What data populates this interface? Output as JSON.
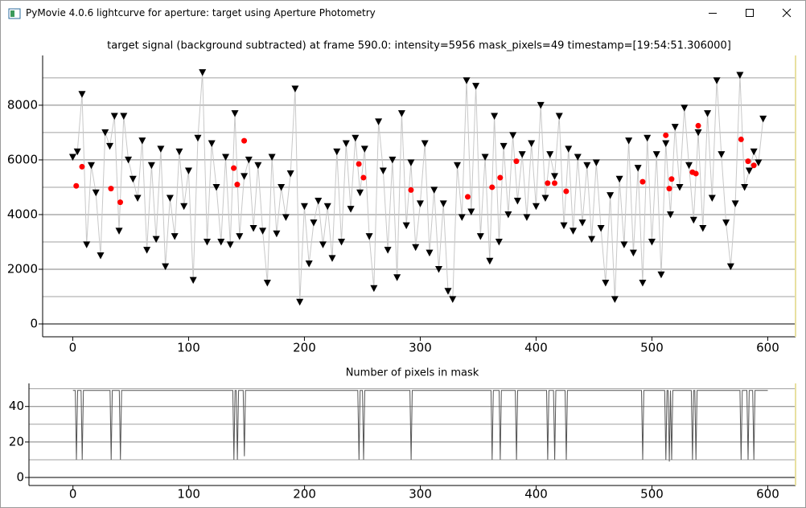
{
  "window": {
    "title": "PyMovie 4.0.6 lightcurve for aperture: target using Aperture Photometry"
  },
  "chart_data": [
    {
      "type": "scatter",
      "title": "target signal (background subtracted) at frame 590.0: intensity=5956 mask_pixels=49 timestamp=[19:54:51.306000]",
      "xlim": [
        -26,
        624
      ],
      "xticks": [
        0,
        100,
        200,
        300,
        400,
        500,
        600
      ],
      "ylim": [
        -470,
        9820
      ],
      "yticks": [
        0,
        2000,
        4000,
        6000,
        8000
      ],
      "yminor": [
        1000,
        3000,
        5000,
        7000,
        9000
      ],
      "grid": true,
      "series": [
        {
          "color": "#000000",
          "marker": "triangle-down",
          "line_color": "#c8c8c8",
          "x": [
            0,
            4,
            8,
            12,
            16,
            20,
            24,
            28,
            32,
            36,
            40,
            44,
            48,
            52,
            56,
            60,
            64,
            68,
            72,
            76,
            80,
            84,
            88,
            92,
            96,
            100,
            104,
            108,
            112,
            116,
            120,
            124,
            128,
            132,
            136,
            140,
            144,
            148,
            152,
            156,
            160,
            164,
            168,
            172,
            176,
            180,
            184,
            188,
            192,
            196,
            200,
            204,
            208,
            212,
            216,
            220,
            224,
            228,
            232,
            236,
            240,
            244,
            248,
            252,
            256,
            260,
            264,
            268,
            272,
            276,
            280,
            284,
            288,
            292,
            296,
            300,
            304,
            308,
            312,
            316,
            320,
            324,
            328,
            332,
            336,
            340,
            344,
            348,
            352,
            356,
            360,
            364,
            368,
            372,
            376,
            380,
            384,
            388,
            392,
            396,
            400,
            404,
            408,
            412,
            416,
            420,
            424,
            428,
            432,
            436,
            440,
            444,
            448,
            452,
            456,
            460,
            464,
            468,
            472,
            476,
            480,
            484,
            488,
            492,
            496,
            500,
            504,
            508,
            512,
            516,
            520,
            524,
            528,
            532,
            536,
            540,
            544,
            548,
            552,
            556,
            560,
            564,
            568,
            572,
            576,
            580,
            584,
            588,
            592,
            596
          ],
          "values": [
            6100,
            6300,
            8400,
            2900,
            5800,
            4800,
            2500,
            7000,
            6500,
            7600,
            3400,
            7600,
            6000,
            5300,
            4600,
            6700,
            2700,
            5800,
            3100,
            6400,
            2100,
            4600,
            3200,
            6300,
            4300,
            5600,
            1600,
            6800,
            9200,
            3000,
            6600,
            5000,
            3000,
            6100,
            2900,
            7700,
            3200,
            5400,
            6000,
            3500,
            5800,
            3400,
            1500,
            6100,
            3300,
            5000,
            3900,
            5500,
            8600,
            800,
            4300,
            2200,
            3700,
            4500,
            2900,
            4300,
            2400,
            6300,
            3000,
            6600,
            4200,
            6800,
            4800,
            6400,
            3200,
            1300,
            7400,
            5600,
            2700,
            6000,
            1700,
            7700,
            3600,
            5900,
            2800,
            4400,
            6600,
            2600,
            4900,
            2000,
            4400,
            1200,
            900,
            5800,
            3900,
            8900,
            4100,
            8700,
            3200,
            6100,
            2300,
            7600,
            3000,
            6500,
            4000,
            6900,
            4500,
            6200,
            3900,
            6600,
            4300,
            8000,
            4600,
            6200,
            5400,
            7600,
            3600,
            6400,
            3400,
            6100,
            3700,
            5800,
            3100,
            5900,
            3500,
            1500,
            4700,
            900,
            5300,
            2900,
            6700,
            2600,
            5700,
            1500,
            6800,
            3000,
            6200,
            1800,
            6600,
            4000,
            7200,
            5000,
            7900,
            5800,
            3800,
            7000,
            3500,
            7700,
            4600,
            8900,
            6200,
            3700,
            2100,
            4400,
            9100,
            5000,
            5600,
            6300,
            5900,
            7500
          ]
        },
        {
          "color": "#ff0000",
          "marker": "circle",
          "x": [
            3,
            8,
            33,
            41,
            139,
            142,
            148,
            247,
            251,
            292,
            341,
            362,
            369,
            383,
            410,
            416,
            426,
            492,
            512,
            515,
            517,
            535,
            538,
            540,
            577,
            583,
            588
          ],
          "values": [
            5050,
            5750,
            4950,
            4450,
            5700,
            5100,
            6700,
            5850,
            5350,
            4900,
            4650,
            5000,
            5350,
            5950,
            5150,
            5150,
            4850,
            5200,
            6900,
            4950,
            5300,
            5550,
            5500,
            7250,
            6750,
            5950,
            5800
          ]
        }
      ]
    },
    {
      "type": "line",
      "title": "Number of pixels in mask",
      "xlim": [
        -38,
        624
      ],
      "xticks": [
        0,
        100,
        200,
        300,
        400,
        500,
        600
      ],
      "ylim": [
        -4.5,
        53
      ],
      "yticks": [
        0,
        20,
        40
      ],
      "yminor": [
        10,
        30,
        50
      ],
      "grid": true,
      "series": [
        {
          "color": "#555555",
          "x": [
            0,
            2,
            3,
            4,
            7,
            8,
            9,
            32,
            33,
            34,
            40,
            41,
            42,
            138,
            139,
            140,
            141,
            142,
            143,
            147,
            148,
            149,
            246,
            247,
            248,
            250,
            251,
            252,
            291,
            292,
            293,
            361,
            362,
            363,
            368,
            369,
            370,
            382,
            383,
            384,
            409,
            410,
            411,
            415,
            416,
            417,
            425,
            426,
            427,
            491,
            492,
            493,
            511,
            512,
            513,
            514,
            515,
            516,
            517,
            518,
            534,
            535,
            536,
            537,
            538,
            539,
            576,
            577,
            578,
            582,
            583,
            584,
            587,
            588,
            589,
            600
          ],
          "values": [
            49,
            49,
            10,
            49,
            49,
            10,
            49,
            49,
            10,
            49,
            49,
            10,
            49,
            49,
            10,
            49,
            49,
            10,
            49,
            49,
            12,
            49,
            49,
            10,
            49,
            49,
            10,
            49,
            49,
            10,
            49,
            49,
            10,
            49,
            49,
            10,
            49,
            49,
            10,
            49,
            49,
            10,
            49,
            49,
            10,
            49,
            49,
            10,
            49,
            49,
            10,
            49,
            49,
            10,
            49,
            49,
            9,
            49,
            10,
            49,
            49,
            10,
            49,
            49,
            10,
            49,
            49,
            10,
            49,
            49,
            10,
            49,
            49,
            10,
            49,
            49
          ]
        }
      ]
    }
  ]
}
